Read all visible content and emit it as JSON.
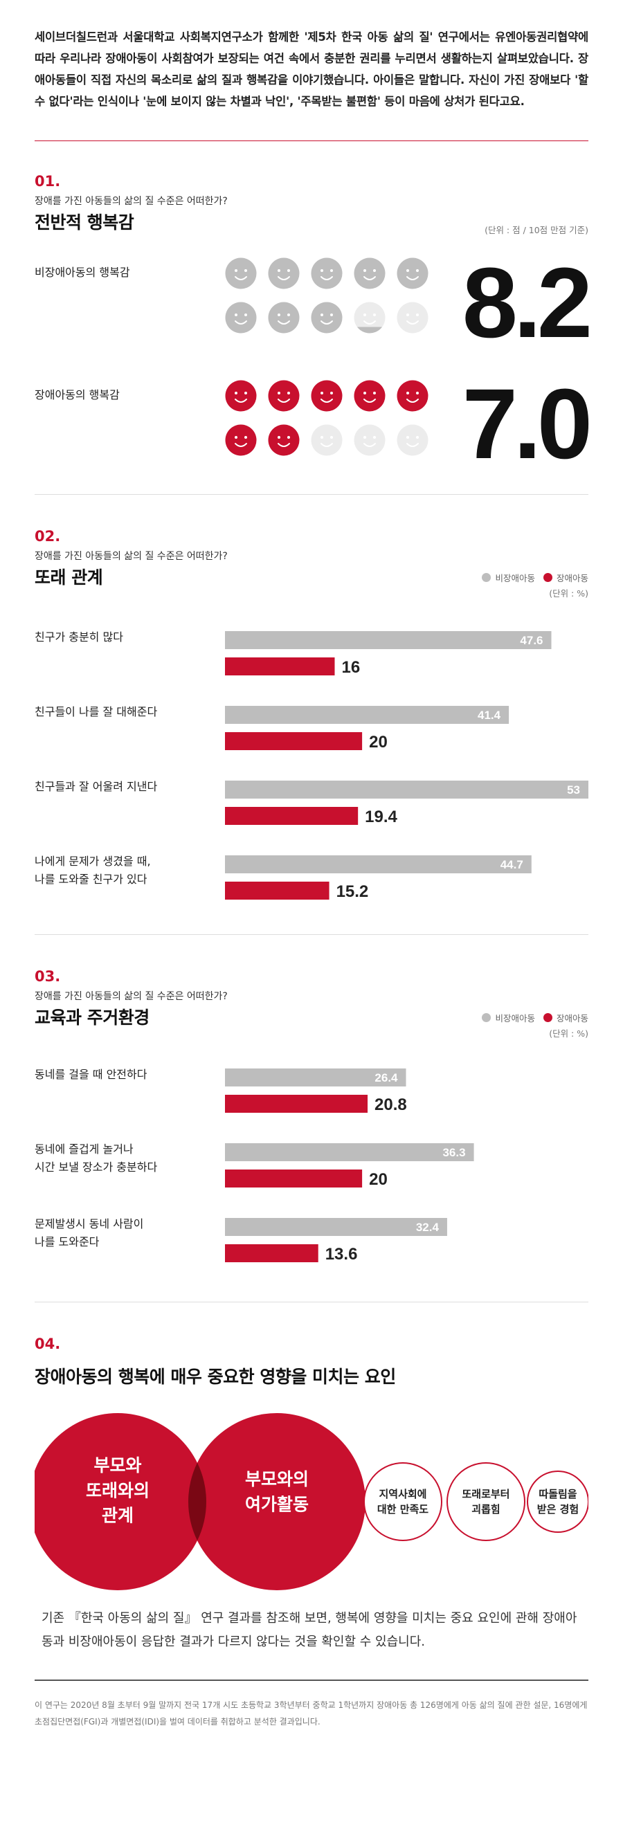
{
  "intro": "세이브더칠드런과 서울대학교 사회복지연구소가 함께한 '제5차 한국 아동 삶의 질' 연구에서는 유엔아동권리협약에 따라 우리나라 장애아동이 사회참여가 보장되는 여건 속에서 충분한 권리를 누리면서 생활하는지 살펴보았습니다. 장애아동들이 직접 자신의 목소리로 삶의 질과 행복감을 이야기했습니다. 아이들은 말합니다. 자신이 가진 장애보다 '할 수 없다'라는 인식이나 '눈에 보이지 않는 차별과 낙인', '주목받는 불편함' 등이 마음에 상처가 된다고요.",
  "colors": {
    "red": "#c8102e",
    "gray": "#bdbdbd",
    "face_gray": "#c4c4c4",
    "face_light": "#ececec"
  },
  "section1": {
    "number": "01.",
    "question": "장애를 가진 아동들의 삶의 질 수준은 어떠한가?",
    "title": "전반적 행복감",
    "unit": "(단위 : 점 / 10점 만점 기준)",
    "rows": [
      {
        "label": "비장애아동의 행복감",
        "value_text": "8.2",
        "value": 8.2,
        "color": "gray"
      },
      {
        "label": "장애아동의 행복감",
        "value_text": "7.0",
        "value": 7.0,
        "color": "red"
      }
    ]
  },
  "legend": {
    "non_disabled": "비장애아동",
    "disabled": "장애아동"
  },
  "section2": {
    "number": "02.",
    "question": "장애를 가진 아동들의 삶의 질 수준은 어떠한가?",
    "title": "또래 관계",
    "unit": "(단위 : %)"
  },
  "section3": {
    "number": "03.",
    "question": "장애를 가진 아동들의 삶의 질 수준은 어떠한가?",
    "title": "교육과 주거환경",
    "unit": "(단위 : %)"
  },
  "chart_data": [
    {
      "type": "bar",
      "title": "또래 관계",
      "categories": [
        "친구가 충분히 많다",
        "친구들이 나를 잘 대해준다",
        "친구들과 잘 어울려 지낸다",
        "나에게 문제가 생겼을 때,\n나를 도와줄 친구가 있다"
      ],
      "series": [
        {
          "name": "비장애아동",
          "values": [
            47.6,
            41.4,
            53,
            44.7
          ]
        },
        {
          "name": "장애아동",
          "values": [
            16,
            20,
            19.4,
            15.2
          ]
        }
      ],
      "xlim": [
        0,
        53
      ]
    },
    {
      "type": "bar",
      "title": "교육과 주거환경",
      "categories": [
        "동네를 걸을 때 안전하다",
        "동네에 즐겁게 놀거나\n시간 보낼 장소가 충분하다",
        "문제발생시 동네 사람이\n나를 도와준다"
      ],
      "series": [
        {
          "name": "비장애아동",
          "values": [
            26.4,
            36.3,
            32.4
          ]
        },
        {
          "name": "장애아동",
          "values": [
            20.8,
            20,
            13.6
          ]
        }
      ],
      "xlim": [
        0,
        53
      ]
    }
  ],
  "section4": {
    "number": "04.",
    "title": "장애아동의 행복에 매우 중요한 영향을 미치는 요인",
    "big_circles": [
      "부모와\n또래와의\n관계",
      "부모와의\n여가활동"
    ],
    "small_circles": [
      "지역사회에\n대한 만족도",
      "또래로부터\n괴롭힘",
      "따돌림을\n받은 경험"
    ],
    "closing": "기존 『한국 아동의 삶의 질』 연구 결과를 참조해 보면, 행복에 영향을 미치는 중요 요인에 관해 장애아동과 비장애아동이 응답한 결과가 다르지 않다는 것을 확인할 수 있습니다.",
    "footnote": "이 연구는 2020년 8월 초부터 9월 말까지 전국 17개 시도 초등학교 3학년부터 중학교 1학년까지 장애아동 총 126명에게 아동 삶의 질에 관한 설문, 16명에게 초점집단면접(FGI)과 개별면접(IDI)을 벌여 데이터를 취합하고 분석한 결과입니다."
  }
}
